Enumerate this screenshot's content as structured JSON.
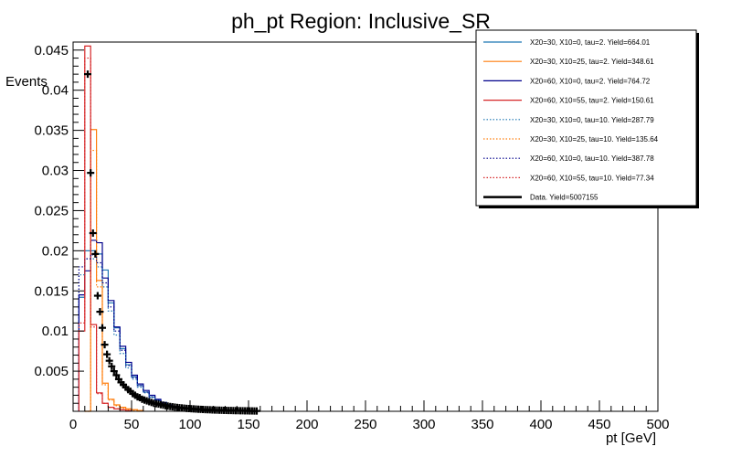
{
  "chart_data": {
    "type": "line",
    "title": "ph_pt Region: Inclusive_SR",
    "xlabel": "pt [GeV]",
    "ylabel": "Events",
    "xlim": [
      0,
      500
    ],
    "ylim": [
      0,
      0.046
    ],
    "bin_width": 5,
    "x_ticks": [
      "0",
      "50",
      "100",
      "150",
      "200",
      "250",
      "300",
      "350",
      "400",
      "450",
      "500"
    ],
    "y_ticks": [
      "0.005",
      "0.01",
      "0.015",
      "0.02",
      "0.025",
      "0.03",
      "0.035",
      "0.04",
      "0.045"
    ],
    "legend_position": "top-right",
    "grid": false,
    "series": [
      {
        "name": "X20=30, X10=0, tau=2. Yield=664.01",
        "color": "#1f77b4",
        "style": "solid",
        "bin_start": 5,
        "values": [
          0.0142,
          0.02,
          0.02,
          0.0196,
          0.0176,
          0.0135,
          0.0104,
          0.0078,
          0.0058,
          0.0043,
          0.0032,
          0.0024,
          0.0018,
          0.0014,
          0.0011,
          0.0008,
          0.0006,
          0.0005,
          0.0004,
          0.0003,
          0.0002,
          0.0002,
          0.0001
        ]
      },
      {
        "name": "X20=30, X10=25, tau=2. Yield=348.61",
        "color": "#ff7f0e",
        "style": "solid",
        "bin_start": 10,
        "values": [
          0.0,
          0.0351,
          0.0163,
          0.0035,
          0.0015,
          0.0008,
          0.0005,
          0.0003,
          0.0002,
          0.0001
        ]
      },
      {
        "name": "X20=60, X10=0, tau=2. Yield=764.72",
        "color": "#00008b",
        "style": "solid",
        "bin_start": 5,
        "values": [
          0.0145,
          0.0175,
          0.0213,
          0.021,
          0.0166,
          0.0138,
          0.0105,
          0.0081,
          0.0061,
          0.0045,
          0.0034,
          0.0026,
          0.002,
          0.0015,
          0.0011,
          0.0008,
          0.0006,
          0.0005,
          0.0004,
          0.0003,
          0.0002,
          0.0002,
          0.0001
        ]
      },
      {
        "name": "X20=60, X10=55, tau=2. Yield=150.61",
        "color": "#d62728",
        "style": "solid",
        "bin_start": 5,
        "values": [
          0.01,
          0.0455,
          0.0108,
          0.0023,
          0.001,
          0.0005,
          0.0003,
          0.0002,
          0.0001
        ]
      },
      {
        "name": "X20=30, X10=0, tau=10. Yield=287.79",
        "color": "#1f77b4",
        "style": "dotted",
        "bin_start": 5,
        "values": [
          0.017,
          0.019,
          0.019,
          0.018,
          0.0155,
          0.0125,
          0.0095,
          0.0072,
          0.0054,
          0.004,
          0.003,
          0.0023,
          0.0017,
          0.0013,
          0.001,
          0.0007,
          0.0005,
          0.0004,
          0.0003,
          0.0002,
          0.0002,
          0.0001
        ]
      },
      {
        "name": "X20=30, X10=25, tau=10. Yield=135.64",
        "color": "#ff7f0e",
        "style": "dotted",
        "bin_start": 10,
        "values": [
          0.0,
          0.0325,
          0.0155,
          0.0033,
          0.0014,
          0.0007,
          0.0004,
          0.0002,
          0.0001
        ]
      },
      {
        "name": "X20=60, X10=0, tau=10. Yield=387.78",
        "color": "#00008b",
        "style": "dotted",
        "bin_start": 5,
        "values": [
          0.018,
          0.019,
          0.0195,
          0.0185,
          0.016,
          0.013,
          0.01,
          0.0076,
          0.0057,
          0.0042,
          0.0032,
          0.0024,
          0.0018,
          0.0014,
          0.001,
          0.0008,
          0.0006,
          0.0004,
          0.0003,
          0.0002,
          0.0002,
          0.0001
        ]
      },
      {
        "name": "X20=60, X10=55, tau=10. Yield=77.34",
        "color": "#d62728",
        "style": "dotted",
        "bin_start": 5,
        "values": [
          0.011,
          0.044,
          0.0105,
          0.0022,
          0.001,
          0.0005,
          0.0003,
          0.0002,
          0.0001
        ]
      }
    ],
    "data_points": {
      "name": "Data. Yield=5007155",
      "color": "#000000",
      "x": [
        12.5,
        15,
        17,
        19,
        21,
        23,
        25,
        27,
        29,
        31,
        33,
        35,
        37,
        39,
        41,
        43,
        45,
        47,
        49,
        51,
        53,
        55,
        57,
        59,
        61,
        63,
        65,
        67,
        69,
        71,
        73,
        75,
        77,
        79,
        81,
        83,
        85,
        87,
        89,
        91,
        93,
        95,
        97,
        99,
        101,
        103,
        105,
        107,
        109,
        111,
        113,
        115,
        117,
        119,
        121,
        123,
        125,
        127,
        129,
        131,
        133,
        135,
        137,
        139,
        141,
        143,
        145,
        147,
        149,
        151,
        153,
        155,
        157
      ],
      "y": [
        0.042,
        0.0297,
        0.0222,
        0.0196,
        0.0144,
        0.0124,
        0.0104,
        0.0083,
        0.0071,
        0.0063,
        0.0056,
        0.005,
        0.0045,
        0.004,
        0.0036,
        0.0033,
        0.003,
        0.0027,
        0.0025,
        0.0022,
        0.002,
        0.0018,
        0.0017,
        0.0015,
        0.0014,
        0.0013,
        0.0012,
        0.0011,
        0.001,
        0.00095,
        0.0009,
        0.00083,
        0.00077,
        0.0007,
        0.00065,
        0.0006,
        0.00056,
        0.00052,
        0.00048,
        0.00045,
        0.00042,
        0.00039,
        0.00036,
        0.00034,
        0.00032,
        0.0003,
        0.00028,
        0.00026,
        0.00024,
        0.00023,
        0.00021,
        0.0002,
        0.00019,
        0.00017,
        0.00016,
        0.00015,
        0.00014,
        0.00013,
        0.00012,
        0.00011,
        0.0001,
        0.0001,
        9e-05,
        8e-05,
        8e-05,
        7e-05,
        7e-05,
        6e-05,
        6e-05,
        5e-05,
        5e-05,
        4e-05,
        4e-05
      ]
    }
  }
}
